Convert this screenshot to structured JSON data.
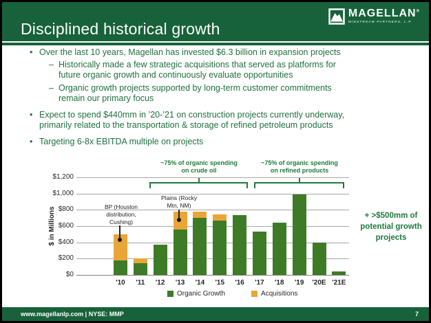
{
  "slide": {
    "title": "Disciplined historical growth",
    "page_number": "7",
    "footer": "www.magellanlp.com | NYSE: MMP",
    "logo": {
      "name": "MAGELLAN",
      "reg": "®",
      "subtitle": "MIDSTREAM PARTNERS, L.P."
    }
  },
  "colors": {
    "header_green": "#17623a",
    "text_green": "#20703f",
    "annotation_green": "#1e7a3c",
    "bar_green": "#3d7b27",
    "acquisition_gold": "#e9a637"
  },
  "bullets": [
    {
      "marker": "•",
      "text": "Over the last 10 years, Magellan has invested $6.3 billion in expansion projects"
    },
    {
      "marker": "–",
      "text": "Historically made a few strategic acquisitions that served as platforms for\nfuture organic growth and continuously evaluate opportunities"
    },
    {
      "marker": "–",
      "text": "Organic growth projects supported by long-term customer commitments\nremain our primary focus"
    },
    {
      "marker": "•",
      "text": "Expect to spend $440mm in ’20-’21 on construction projects currently underway,\nprimarily related to the transportation & storage of refined petroleum products"
    },
    {
      "marker": "•",
      "text": "Targeting 6-8x EBITDA multiple on projects"
    }
  ],
  "chart_data": {
    "type": "bar",
    "stacked": true,
    "categories": [
      "'10",
      "'11",
      "'12",
      "'13",
      "'14",
      "'15",
      "'16",
      "'17",
      "'18",
      "'19",
      "'20E",
      "'21E"
    ],
    "series": [
      {
        "name": "Organic Growth",
        "color": "#3d7b27",
        "values": [
          180,
          145,
          370,
          560,
          700,
          665,
          735,
          535,
          640,
          985,
          395,
          40
        ]
      },
      {
        "name": "Acquisitions",
        "color": "#e9a637",
        "values": [
          320,
          60,
          0,
          220,
          75,
          80,
          0,
          0,
          0,
          0,
          0,
          0
        ]
      }
    ],
    "ylabel": "$ in Millions",
    "ylim": [
      0,
      1200
    ],
    "ytick_step": 200,
    "ytick_labels": [
      "$0",
      "$200",
      "$400",
      "$600",
      "$800",
      "$1,000",
      "$1,200"
    ],
    "grid": "horizontal",
    "legend_position": "bottom",
    "annotations": {
      "crude_bracket_label": "~75% of organic spending\non crude oil",
      "refined_bracket_label": "~75% of organic spending\non refined products",
      "bp_callout": "BP (Houston\ndistribution,\nCushing)",
      "plains_callout": "Plains (Rocky\nMtn, NM)",
      "side_note": "+ >$500mm of\npotential growth\nprojects"
    }
  }
}
